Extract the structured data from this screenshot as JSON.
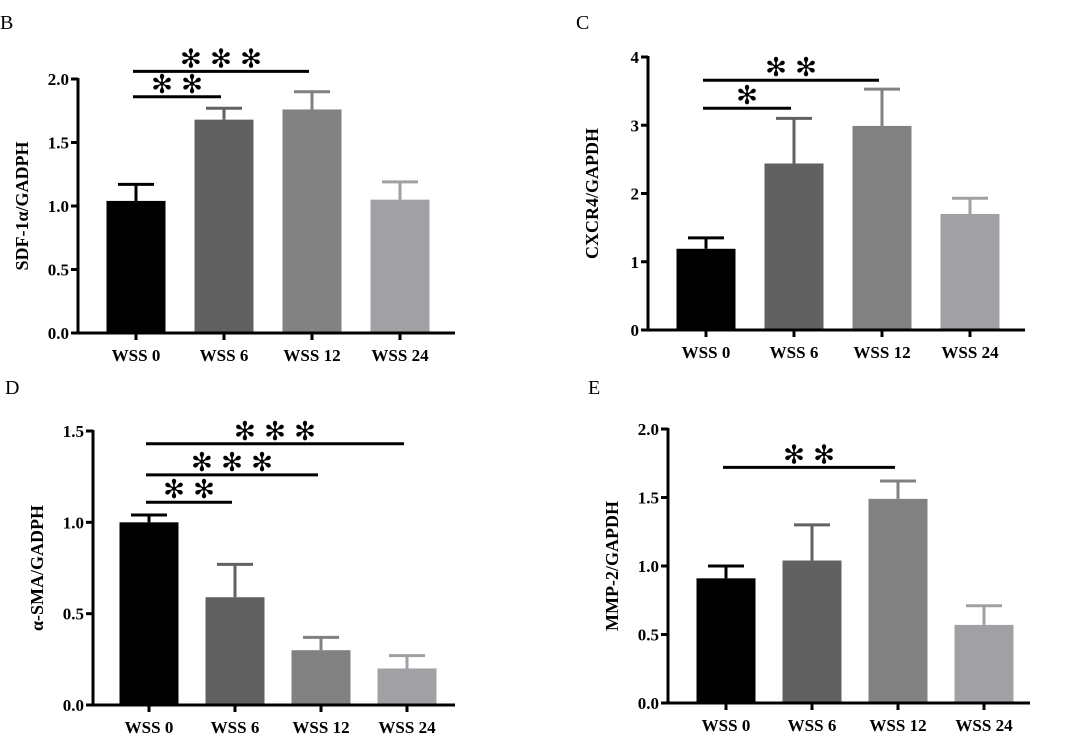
{
  "colors": [
    "#000000",
    "#616161",
    "#818181",
    "#a1a1a5"
  ],
  "chart_data": [
    {
      "panel": "B",
      "type": "bar",
      "ylabel": "SDF-1α/GADPH",
      "xlabel": "",
      "categories": [
        "WSS 0",
        "WSS 6",
        "WSS 12",
        "WSS 24"
      ],
      "values": [
        1.04,
        1.68,
        1.76,
        1.05
      ],
      "error_upper": [
        1.17,
        1.77,
        1.9,
        1.19
      ],
      "ylim": [
        0,
        2.0
      ],
      "yticks": [
        "0.0",
        "0.5",
        "1.0",
        "1.5",
        "2.0"
      ],
      "ytick_values": [
        0,
        0.5,
        1.0,
        1.5,
        2.0
      ],
      "significance": [
        {
          "from": 0,
          "to": 1,
          "label": "**",
          "y": 1.86
        },
        {
          "from": 0,
          "to": 2,
          "label": "***",
          "y": 2.06
        }
      ]
    },
    {
      "panel": "C",
      "type": "bar",
      "ylabel": "CXCR4/GAPDH",
      "xlabel": "",
      "categories": [
        "WSS 0",
        "WSS 6",
        "WSS 12",
        "WSS 24"
      ],
      "values": [
        1.19,
        2.44,
        2.99,
        1.7
      ],
      "error_upper": [
        1.35,
        3.1,
        3.53,
        1.93
      ],
      "ylim": [
        0,
        4
      ],
      "yticks": [
        "0",
        "1",
        "2",
        "3",
        "4"
      ],
      "ytick_values": [
        0,
        1,
        2,
        3,
        4
      ],
      "significance": [
        {
          "from": 0,
          "to": 1,
          "label": "*",
          "y": 3.25
        },
        {
          "from": 0,
          "to": 2,
          "label": "**",
          "y": 3.66
        }
      ]
    },
    {
      "panel": "D",
      "type": "bar",
      "ylabel": "α-SMA/GADPH",
      "xlabel": "",
      "categories": [
        "WSS 0",
        "WSS 6",
        "WSS 12",
        "WSS 24"
      ],
      "values": [
        1.0,
        0.59,
        0.3,
        0.2
      ],
      "error_upper": [
        1.04,
        0.77,
        0.37,
        0.27
      ],
      "ylim": [
        0,
        1.5
      ],
      "yticks": [
        "0.0",
        "0.5",
        "1.0",
        "1.5"
      ],
      "ytick_values": [
        0,
        0.5,
        1.0,
        1.5
      ],
      "significance": [
        {
          "from": 0,
          "to": 1,
          "label": "**",
          "y": 1.11
        },
        {
          "from": 0,
          "to": 2,
          "label": "***",
          "y": 1.26
        },
        {
          "from": 0,
          "to": 3,
          "label": "***",
          "y": 1.43
        }
      ]
    },
    {
      "panel": "E",
      "type": "bar",
      "ylabel": "MMP-2/GAPDH",
      "xlabel": "",
      "categories": [
        "WSS 0",
        "WSS 6",
        "WSS 12",
        "WSS 24"
      ],
      "values": [
        0.91,
        1.04,
        1.49,
        0.57
      ],
      "error_upper": [
        1.0,
        1.3,
        1.62,
        0.71
      ],
      "ylim": [
        0,
        2.0
      ],
      "yticks": [
        "0.0",
        "0.5",
        "1.0",
        "1.5",
        "2.0"
      ],
      "ytick_values": [
        0,
        0.5,
        1.0,
        1.5,
        2.0
      ],
      "significance": [
        {
          "from": 0,
          "to": 2,
          "label": "**",
          "y": 1.72
        }
      ]
    }
  ]
}
